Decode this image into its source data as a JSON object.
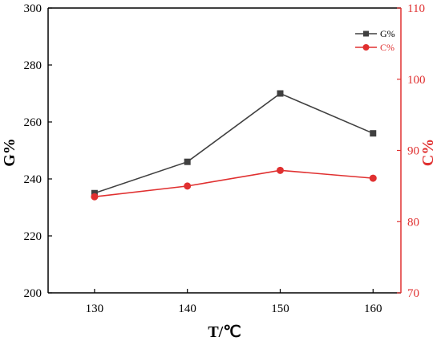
{
  "chart_data": {
    "type": "line",
    "x": [
      130,
      140,
      150,
      160
    ],
    "xlabel": "T/℃",
    "xlim": [
      125,
      163
    ],
    "x_ticks": [
      130,
      140,
      150,
      160
    ],
    "left_axis": {
      "label": "G%",
      "range": [
        200,
        300
      ],
      "ticks": [
        200,
        220,
        240,
        260,
        280,
        300
      ],
      "color": "#000000"
    },
    "right_axis": {
      "label": "C%",
      "range": [
        70,
        110
      ],
      "ticks": [
        70,
        80,
        90,
        100,
        110
      ],
      "color": "#e03030"
    },
    "series": [
      {
        "name": "G%",
        "axis": "left",
        "color": "#404040",
        "marker": "square",
        "values": [
          235,
          246,
          270,
          256
        ]
      },
      {
        "name": "C%",
        "axis": "right",
        "color": "#e03030",
        "marker": "circle",
        "values": [
          83.5,
          85,
          87.2,
          86.1
        ]
      }
    ],
    "legend": "top-right",
    "grid": false
  }
}
